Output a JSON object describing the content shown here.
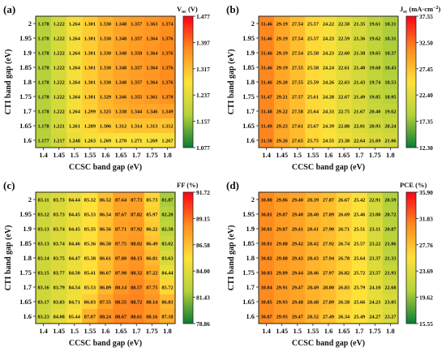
{
  "chart_data": [
    {
      "type": "heatmap",
      "panel_label": "(a)",
      "colorbar_title": "Voc (V)",
      "colorbar_title_main": "V",
      "colorbar_title_sub": "oc",
      "colorbar_title_unit": " (V)",
      "colorbar_ticks": [
        "1.477",
        "1.397",
        "1.317",
        "1.237",
        "1.157",
        "1.077"
      ],
      "color_range": [
        1.077,
        1.477
      ],
      "decimals": 3,
      "xlabel": "CCSC band gap (eV)",
      "ylabel": "CTI band gap (eV)",
      "x": [
        "1.4",
        "1.45",
        "1.5",
        "1.55",
        "1.6",
        "1.65",
        "1.7",
        "1.75",
        "1.8"
      ],
      "y": [
        "2",
        "1.95",
        "1.9",
        "1.85",
        "1.8",
        "1.75",
        "1.7",
        "1.65",
        "1.6"
      ],
      "values": [
        [
          1.178,
          1.222,
          1.264,
          1.301,
          1.33,
          1.348,
          1.357,
          1.363,
          1.374
        ],
        [
          1.178,
          1.222,
          1.264,
          1.301,
          1.33,
          1.348,
          1.357,
          1.364,
          1.376
        ],
        [
          1.178,
          1.222,
          1.264,
          1.301,
          1.33,
          1.348,
          1.358,
          1.364,
          1.376
        ],
        [
          1.178,
          1.222,
          1.264,
          1.301,
          1.33,
          1.348,
          1.357,
          1.364,
          1.376
        ],
        [
          1.178,
          1.222,
          1.264,
          1.301,
          1.33,
          1.348,
          1.357,
          1.364,
          1.376
        ],
        [
          1.178,
          1.222,
          1.264,
          1.301,
          1.329,
          1.346,
          1.355,
          1.361,
          1.37
        ],
        [
          1.178,
          1.222,
          1.264,
          1.299,
          1.325,
          1.338,
          1.344,
          1.346,
          1.349
        ],
        [
          1.178,
          1.221,
          1.261,
          1.289,
          1.306,
          1.312,
          1.314,
          1.313,
          1.312
        ],
        [
          1.177,
          1.217,
          1.248,
          1.263,
          1.269,
          1.27,
          1.271,
          1.269,
          1.267
        ]
      ]
    },
    {
      "type": "heatmap",
      "panel_label": "(b)",
      "colorbar_title": "Jsc (mA·cm−2)",
      "colorbar_title_main": "J",
      "colorbar_title_sub": "sc",
      "colorbar_title_unit": " (mA·cm",
      "colorbar_title_sup": "−2",
      "colorbar_title_close": ")",
      "colorbar_ticks": [
        "37.55",
        "32.50",
        "27.45",
        "22.40",
        "17.35",
        "12.30"
      ],
      "color_range": [
        12.3,
        37.55
      ],
      "decimals": 2,
      "xlabel": "CCSC band gap (eV)",
      "ylabel": "CTI band gap (eV)",
      "x": [
        "1.4",
        "1.45",
        "1.5",
        "1.55",
        "1.6",
        "1.65",
        "1.7",
        "1.75",
        "1.8"
      ],
      "y": [
        "2",
        "1.95",
        "1.9",
        "1.85",
        "1.8",
        "1.75",
        "1.7",
        "1.65",
        "1.6"
      ],
      "values": [
        [
          31.46,
          29.19,
          27.54,
          25.57,
          24.22,
          22.58,
          21.35,
          19.61,
          18.31
        ],
        [
          31.46,
          29.19,
          27.54,
          25.57,
          24.23,
          22.59,
          21.36,
          19.62,
          18.31
        ],
        [
          31.46,
          29.19,
          27.54,
          25.58,
          24.23,
          22.6,
          21.38,
          19.65,
          18.37
        ],
        [
          31.46,
          29.19,
          27.55,
          25.58,
          24.24,
          22.61,
          21.4,
          19.68,
          18.43
        ],
        [
          31.46,
          29.2,
          27.55,
          25.59,
          24.26,
          22.63,
          21.43,
          19.74,
          18.53
        ],
        [
          31.47,
          29.21,
          27.57,
          25.61,
          24.28,
          22.67,
          21.49,
          19.85,
          18.95
        ],
        [
          31.48,
          29.22,
          27.58,
          25.64,
          24.33,
          22.75,
          21.67,
          20.4,
          19.62
        ],
        [
          31.49,
          29.23,
          27.61,
          25.67,
          24.39,
          22.88,
          22.01,
          20.93,
          20.24
        ],
        [
          31.5,
          29.26,
          27.65,
          25.75,
          24.55,
          23.38,
          22.64,
          21.69,
          21.06
        ]
      ]
    },
    {
      "type": "heatmap",
      "panel_label": "(c)",
      "colorbar_title": "FF (%)",
      "colorbar_title_main": "FF (%)",
      "colorbar_ticks": [
        "91.72",
        "89.15",
        "86.58",
        "84.00",
        "81.43",
        "78.86"
      ],
      "color_range": [
        78.86,
        91.72
      ],
      "decimals": 2,
      "xlabel": "CCSC band gap (eV)",
      "ylabel": "CTI band gap (eV)",
      "x": [
        "1.4",
        "1.45",
        "1.5",
        "1.55",
        "1.6",
        "1.65",
        "1.7",
        "1.75",
        "1.8"
      ],
      "y": [
        "2",
        "1.95",
        "1.9",
        "1.85",
        "1.8",
        "1.75",
        "1.7",
        "1.65",
        "1.6"
      ],
      "values": [
        [
          83.11,
          83.73,
          84.44,
          85.32,
          86.52,
          87.64,
          87.73,
          85.73,
          81.87
        ],
        [
          83.12,
          83.73,
          84.45,
          85.33,
          86.54,
          87.67,
          87.82,
          85.97,
          82.2
        ],
        [
          83.13,
          83.74,
          84.45,
          85.35,
          86.56,
          87.71,
          87.92,
          86.22,
          82.58
        ],
        [
          83.13,
          83.74,
          84.46,
          85.36,
          86.58,
          87.75,
          88.02,
          86.49,
          83.02
        ],
        [
          83.14,
          83.75,
          84.47,
          85.38,
          86.61,
          87.8,
          88.15,
          86.81,
          83.63
        ],
        [
          83.15,
          83.77,
          84.5,
          85.41,
          86.67,
          87.9,
          88.32,
          87.22,
          84.44
        ],
        [
          83.16,
          83.79,
          84.54,
          85.53,
          86.89,
          88.14,
          88.57,
          87.75,
          85.72
        ],
        [
          83.17,
          83.83,
          84.71,
          86.03,
          87.55,
          88.55,
          88.72,
          88.14,
          86.83
        ],
        [
          83.23,
          84.08,
          85.44,
          87.07,
          88.24,
          88.67,
          88.61,
          88.16,
          87.18
        ]
      ]
    },
    {
      "type": "heatmap",
      "panel_label": "(d)",
      "colorbar_title": "PCE (%)",
      "colorbar_title_main": "PCE (%)",
      "colorbar_ticks": [
        "35.90",
        "31.83",
        "27.76",
        "23.69",
        "19.62",
        "15.55"
      ],
      "color_range": [
        15.55,
        35.9
      ],
      "decimals": 2,
      "xlabel": "CCSC band gap (eV)",
      "ylabel": "CTI band gap (eV)",
      "x": [
        "1.4",
        "1.45",
        "1.5",
        "1.55",
        "1.6",
        "1.65",
        "1.7",
        "1.75",
        "1.8"
      ],
      "y": [
        "2",
        "1.95",
        "1.9",
        "1.85",
        "1.8",
        "1.75",
        "1.7",
        "1.65",
        "1.6"
      ],
      "values": [
        [
          30.8,
          29.86,
          29.4,
          28.39,
          27.87,
          26.67,
          25.42,
          22.91,
          20.59
        ],
        [
          30.81,
          29.87,
          29.4,
          28.4,
          27.89,
          26.69,
          25.46,
          23.0,
          20.72
        ],
        [
          30.81,
          29.87,
          29.41,
          28.41,
          27.9,
          26.71,
          25.51,
          23.11,
          20.87
        ],
        [
          30.81,
          29.88,
          29.42,
          28.42,
          27.92,
          26.74,
          25.57,
          23.22,
          21.06
        ],
        [
          30.82,
          29.88,
          29.43,
          28.43,
          27.94,
          26.78,
          25.64,
          23.37,
          21.33
        ],
        [
          30.83,
          29.89,
          29.44,
          28.46,
          27.97,
          26.82,
          25.72,
          23.57,
          21.93
        ],
        [
          30.84,
          29.91,
          29.47,
          28.49,
          28.0,
          26.83,
          25.79,
          24.1,
          22.68
        ],
        [
          30.85,
          29.93,
          29.48,
          28.48,
          27.89,
          26.58,
          25.66,
          24.23,
          23.05
        ],
        [
          30.87,
          29.95,
          29.47,
          28.32,
          27.49,
          26.34,
          25.49,
          24.27,
          23.27
        ]
      ]
    }
  ]
}
